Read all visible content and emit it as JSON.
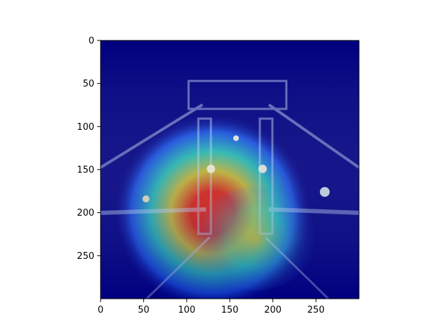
{
  "chart_data": {
    "type": "heatmap",
    "title": "",
    "xlabel": "",
    "ylabel": "",
    "image_size": [
      300,
      300
    ],
    "xlim": [
      0,
      300
    ],
    "ylim": [
      300,
      0
    ],
    "x_ticks": [
      0,
      50,
      100,
      150,
      200,
      250
    ],
    "y_ticks": [
      0,
      50,
      100,
      150,
      200,
      250
    ],
    "x_tick_labels": [
      "0",
      "50",
      "100",
      "150",
      "200",
      "250"
    ],
    "y_tick_labels": [
      "0",
      "50",
      "100",
      "150",
      "200",
      "250"
    ],
    "colormap": "jet",
    "hotspots": [
      {
        "cx": 130,
        "cy": 200,
        "rx": 110,
        "ry": 115,
        "intensity": 1.0
      },
      {
        "cx": 180,
        "cy": 230,
        "rx": 70,
        "ry": 60,
        "intensity": 0.6
      }
    ],
    "grid": false,
    "colors": {
      "cold": "#00007f",
      "cool": "#1e6bff",
      "mid": "#2ff0c0",
      "warm": "#f0e020",
      "hot": "#ff2a00",
      "axis": "#000000"
    }
  }
}
